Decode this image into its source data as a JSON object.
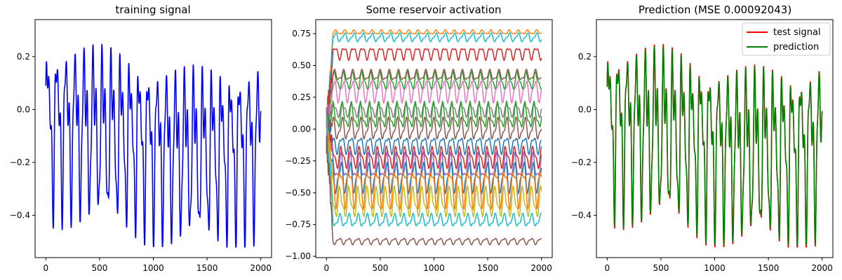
{
  "chart_data": [
    {
      "type": "line",
      "title": "training signal",
      "xlabel": "",
      "ylabel": "",
      "xlim": [
        -100,
        2100
      ],
      "ylim": [
        -0.56,
        0.34
      ],
      "xticks": [
        0,
        500,
        1000,
        1500,
        2000
      ],
      "xtick_labels": [
        "0",
        "500",
        "1000",
        "1500",
        "2000"
      ],
      "yticks": [
        -0.4,
        -0.2,
        0.0,
        0.2
      ],
      "ytick_labels": [
        "−0.4",
        "−0.2",
        "0.0",
        "0.2"
      ],
      "grid": false,
      "legend": null,
      "series": [
        {
          "color": "#0000ff",
          "x": [
            0,
            2000
          ],
          "generator": "Mackey-Glass-like oscillation, period ~85, range -0.52 to 0.31",
          "signal": {
            "period": 85,
            "max": 0.31,
            "min": -0.52
          }
        }
      ]
    },
    {
      "type": "line",
      "title": "Some reservoir activation",
      "xlabel": "",
      "ylabel": "",
      "xlim": [
        -100,
        2100
      ],
      "ylim": [
        -1.01,
        0.86
      ],
      "xticks": [
        0,
        500,
        1000,
        1500,
        2000
      ],
      "xtick_labels": [
        "0",
        "500",
        "1000",
        "1500",
        "2000"
      ],
      "yticks": [
        -1.0,
        -0.75,
        -0.5,
        -0.25,
        0.0,
        0.25,
        0.5,
        0.75
      ],
      "ytick_labels": [
        "−1.00",
        "−0.75",
        "−0.50",
        "−0.25",
        "0.00",
        "0.25",
        "0.50",
        "0.75"
      ],
      "grid": false,
      "legend": null,
      "series": [
        {
          "color": "#ff7f0e",
          "center": 0.76,
          "amp": 0.02
        },
        {
          "color": "#17becf",
          "center": 0.72,
          "amp": 0.04
        },
        {
          "color": "#d62728",
          "center": 0.6,
          "amp": 0.06
        },
        {
          "color": "#2ca02c",
          "center": 0.38,
          "amp": 0.08
        },
        {
          "color": "#8c564b",
          "center": 0.42,
          "amp": 0.05
        },
        {
          "color": "#e377c2",
          "center": 0.3,
          "amp": 0.1
        },
        {
          "color": "#7f7f7f",
          "center": 0.15,
          "amp": 0.06
        },
        {
          "color": "#2ca02c",
          "center": 0.1,
          "amp": 0.12
        },
        {
          "color": "#8c564b",
          "center": 0.0,
          "amp": 0.1
        },
        {
          "color": "#1f77b4",
          "center": -0.12,
          "amp": 0.08
        },
        {
          "color": "#d62728",
          "center": -0.22,
          "amp": 0.1
        },
        {
          "color": "#9467bd",
          "center": -0.3,
          "amp": 0.12
        },
        {
          "color": "#1f77b4",
          "center": -0.38,
          "amp": 0.14
        },
        {
          "color": "#ff7f0e",
          "center": -0.45,
          "amp": 0.18
        },
        {
          "color": "#bcbd22",
          "center": -0.58,
          "amp": 0.14
        },
        {
          "color": "#17becf",
          "center": -0.72,
          "amp": 0.06
        },
        {
          "color": "#8c564b",
          "center": -0.88,
          "amp": 0.03
        }
      ]
    },
    {
      "type": "line",
      "title": "Prediction (MSE 0.00092043)",
      "xlabel": "",
      "ylabel": "",
      "xlim": [
        -100,
        2100
      ],
      "ylim": [
        -0.56,
        0.34
      ],
      "xticks": [
        0,
        500,
        1000,
        1500,
        2000
      ],
      "xtick_labels": [
        "0",
        "500",
        "1000",
        "1500",
        "2000"
      ],
      "yticks": [
        -0.4,
        -0.2,
        0.0,
        0.2
      ],
      "ytick_labels": [
        "−0.4",
        "−0.2",
        "0.0",
        "0.2"
      ],
      "grid": false,
      "legend": "top-right",
      "series": [
        {
          "name": "test signal",
          "color": "#ff0000",
          "signal": {
            "period": 85,
            "max": 0.31,
            "min": -0.52
          }
        },
        {
          "name": "prediction",
          "color": "#008000",
          "signal": {
            "period": 85,
            "max": 0.3,
            "min": -0.51
          }
        }
      ]
    }
  ]
}
